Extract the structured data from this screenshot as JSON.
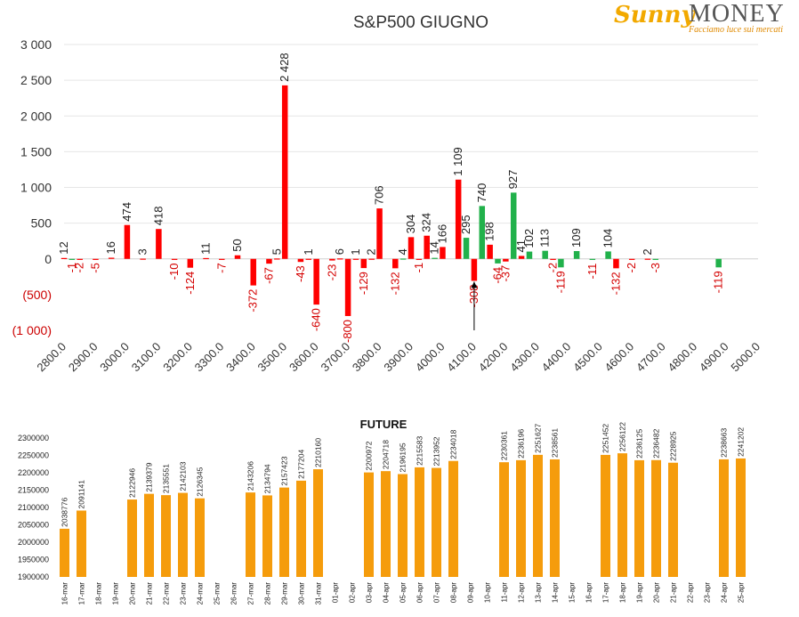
{
  "logo": {
    "word1": "Sunny",
    "word2": "MONEY",
    "tagline": "Facciamo luce sui mercati"
  },
  "colors": {
    "positive": "#21b14b",
    "negative": "#ff0000",
    "future": "#f59c0c",
    "neg_label": "#d40000",
    "pos_label": "#222222"
  },
  "chart_data": [
    {
      "type": "bar",
      "title": "S&P500 GIUGNO",
      "xlabel": "",
      "ylabel": "",
      "xlim": [
        2800,
        5000
      ],
      "ylim": [
        -1000,
        3000
      ],
      "yticks": [
        -1000,
        -500,
        0,
        500,
        1000,
        1500,
        2000,
        2500,
        3000
      ],
      "ytick_labels": [
        "(1 000)",
        "(500)",
        "0",
        "500",
        "1 000",
        "1 500",
        "2 000",
        "2 500",
        "3 000"
      ],
      "xticks": [
        2800,
        2900,
        3000,
        3100,
        3200,
        3300,
        3400,
        3500,
        3600,
        3700,
        3800,
        3900,
        4000,
        4100,
        4200,
        4300,
        4400,
        4500,
        4600,
        4700,
        4800,
        4900,
        5000
      ],
      "xtick_labels": [
        "2800.0",
        "2900.0",
        "3000.0",
        "3100.0",
        "3200.0",
        "3300.0",
        "3400.0",
        "3500.0",
        "3600.0",
        "3700.0",
        "3800.0",
        "3900.0",
        "4000.0",
        "4100.0",
        "4200.0",
        "4300.0",
        "4400.0",
        "4500.0",
        "4600.0",
        "4700.0",
        "4800.0",
        "4900.0",
        "5000.0"
      ],
      "grid": true,
      "series": [
        {
          "color": "#ff0000",
          "points": [
            {
              "x": 2800,
              "y": 12
            },
            {
              "x": 2850,
              "y": -2
            },
            {
              "x": 2900,
              "y": -5
            },
            {
              "x": 2950,
              "y": 16
            },
            {
              "x": 3000,
              "y": 474
            },
            {
              "x": 3050,
              "y": 3
            },
            {
              "x": 3100,
              "y": 418
            },
            {
              "x": 3150,
              "y": -10
            },
            {
              "x": 3200,
              "y": -124
            },
            {
              "x": 3250,
              "y": 11
            },
            {
              "x": 3300,
              "y": -7
            },
            {
              "x": 3350,
              "y": 50
            },
            {
              "x": 3400,
              "y": -372
            },
            {
              "x": 3450,
              "y": -67
            },
            {
              "x": 3475,
              "y": 5
            },
            {
              "x": 3500,
              "y": 2428
            },
            {
              "x": 3550,
              "y": -43
            },
            {
              "x": 3575,
              "y": 1
            },
            {
              "x": 3600,
              "y": -640
            },
            {
              "x": 3650,
              "y": -23
            },
            {
              "x": 3675,
              "y": 6
            },
            {
              "x": 3700,
              "y": -800
            },
            {
              "x": 3725,
              "y": 1
            },
            {
              "x": 3750,
              "y": -129
            },
            {
              "x": 3775,
              "y": 2
            },
            {
              "x": 3800,
              "y": 706
            },
            {
              "x": 3850,
              "y": -132
            },
            {
              "x": 3900,
              "y": 304
            },
            {
              "x": 3925,
              "y": -1
            },
            {
              "x": 3950,
              "y": 324
            },
            {
              "x": 4000,
              "y": 166
            },
            {
              "x": 4050,
              "y": 1109
            },
            {
              "x": 4100,
              "y": -308
            },
            {
              "x": 4150,
              "y": 198
            },
            {
              "x": 4200,
              "y": -37
            },
            {
              "x": 4250,
              "y": 41
            },
            {
              "x": 4350,
              "y": -2
            },
            {
              "x": 4550,
              "y": -132
            },
            {
              "x": 4600,
              "y": -2
            },
            {
              "x": 4650,
              "y": 2
            }
          ]
        },
        {
          "color": "#21b14b",
          "points": [
            {
              "x": 2825,
              "y": -1
            },
            {
              "x": 3875,
              "y": 4
            },
            {
              "x": 3975,
              "y": 14
            },
            {
              "x": 4075,
              "y": 295
            },
            {
              "x": 4125,
              "y": 740
            },
            {
              "x": 4175,
              "y": -64
            },
            {
              "x": 4225,
              "y": 927
            },
            {
              "x": 4275,
              "y": 102
            },
            {
              "x": 4325,
              "y": 113
            },
            {
              "x": 4375,
              "y": -119
            },
            {
              "x": 4425,
              "y": 109
            },
            {
              "x": 4475,
              "y": -11
            },
            {
              "x": 4525,
              "y": 104
            },
            {
              "x": 4675,
              "y": -3
            },
            {
              "x": 4875,
              "y": -119
            }
          ]
        }
      ],
      "annotations": [
        {
          "type": "arrow",
          "x": 4100,
          "from_y": -1000,
          "to_y": -320
        }
      ]
    },
    {
      "type": "bar",
      "title": "FUTURE",
      "xlabel": "",
      "ylabel": "",
      "ylim": [
        1900000,
        2300000
      ],
      "yticks": [
        1900000,
        1950000,
        2000000,
        2050000,
        2100000,
        2150000,
        2200000,
        2250000,
        2300000
      ],
      "categories": [
        "16-mar",
        "17-mar",
        "18-mar",
        "19-mar",
        "20-mar",
        "21-mar",
        "22-mar",
        "23-mar",
        "24-mar",
        "25-mar",
        "26-mar",
        "27-mar",
        "28-mar",
        "29-mar",
        "30-mar",
        "31-mar",
        "01-apr",
        "02-apr",
        "03-apr",
        "04-apr",
        "05-apr",
        "06-apr",
        "07-apr",
        "08-apr",
        "09-apr",
        "10-apr",
        "11-apr",
        "12-apr",
        "13-apr",
        "14-apr",
        "15-apr",
        "16-apr",
        "17-apr",
        "18-apr",
        "19-apr",
        "20-apr",
        "21-apr",
        "22-apr",
        "23-apr",
        "24-apr",
        "25-apr"
      ],
      "values": [
        2038776,
        2091141,
        null,
        null,
        2122946,
        2139379,
        2135551,
        2142103,
        2126345,
        null,
        null,
        2143206,
        2134794,
        2157423,
        2177204,
        2210160,
        null,
        null,
        2200972,
        2204718,
        2196195,
        2215583,
        2213952,
        2234018,
        null,
        null,
        2230361,
        2236196,
        2251627,
        2238561,
        null,
        null,
        2251452,
        2256122,
        2236125,
        2236482,
        2228925,
        null,
        null,
        2238663,
        2241202
      ],
      "grid": false
    }
  ]
}
